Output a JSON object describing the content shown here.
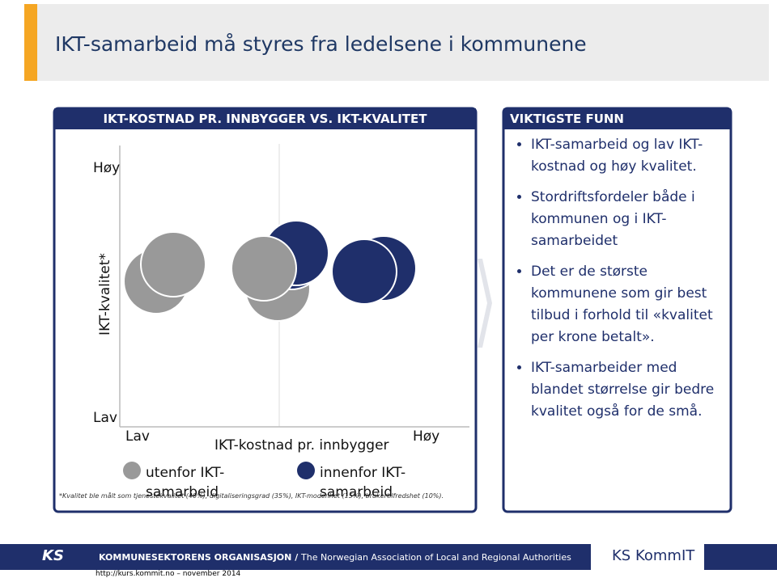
{
  "title": "IKT-samarbeid må styres fra ledelsene i kommunene",
  "left_panel": {
    "header": "IKT-KOSTNAD PR. INNBYGGER VS. IKT-KVALITET",
    "y_axis": {
      "label": "IKT-kvalitet*",
      "high": "Høy",
      "low": "Lav"
    },
    "x_axis": {
      "label": "IKT-kostnad pr. innbygger",
      "low": "Lav",
      "high": "Høy"
    },
    "legend": [
      "utenfor IKT-samarbeid",
      "innenfor IKT-samarbeid"
    ],
    "footnote": "*Kvalitet ble målt som tjenestekvalitet (40%), digitaliseringsgrad (35%), IKT-modenhet (15%), brukertilfredshet (10%)."
  },
  "right_panel": {
    "header": "VIKTIGSTE FUNN",
    "bullets": [
      "IKT-samarbeid og lav IKT-kostnad og høy kvalitet.",
      "Stordriftsfordeler både i kommunen og i IKT-samarbeidet",
      "Det er de største kommunene som gir best tilbud i forhold til «kvalitet per krone betalt».",
      "IKT-samarbeider med blandet størrelse gir bedre kvalitet også for de små."
    ]
  },
  "footer": {
    "org": "KOMMUNESEKTORENS ORGANISASJON",
    "org_en": "The Norwegian Association of Local and Regional Authorities",
    "logo_left": "KS",
    "logo_right": "KS KommIT",
    "url": "http://kurs.kommit.no – november 2014"
  }
}
